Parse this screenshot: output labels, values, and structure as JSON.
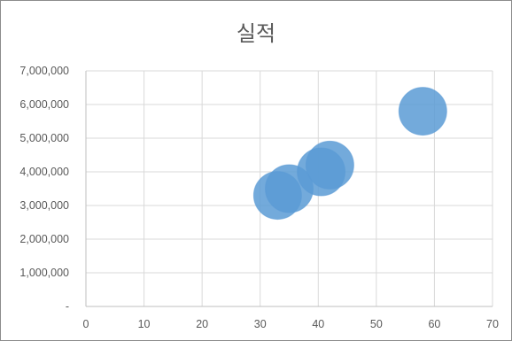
{
  "chart_data": {
    "type": "bubble",
    "title": "실적",
    "xlabel": "",
    "ylabel": "",
    "xlim": [
      0,
      70
    ],
    "ylim": [
      0,
      7000000
    ],
    "x_ticks": [
      0,
      10,
      20,
      30,
      40,
      50,
      60,
      70
    ],
    "x_tick_labels": [
      "0",
      "10",
      "20",
      "30",
      "40",
      "50",
      "60",
      "70"
    ],
    "y_ticks": [
      0,
      1000000,
      2000000,
      3000000,
      4000000,
      5000000,
      6000000,
      7000000
    ],
    "y_tick_labels": [
      "-",
      "1,000,000",
      "2,000,000",
      "3,000,000",
      "4,000,000",
      "5,000,000",
      "6,000,000",
      "7,000,000"
    ],
    "grid": true,
    "legend": "none",
    "bubble_color": "#5b9bd5",
    "points": [
      {
        "x": 33,
        "y": 3300000
      },
      {
        "x": 35,
        "y": 3500000
      },
      {
        "x": 40.5,
        "y": 4000000
      },
      {
        "x": 42,
        "y": 4200000
      },
      {
        "x": 58,
        "y": 5800000
      }
    ]
  }
}
